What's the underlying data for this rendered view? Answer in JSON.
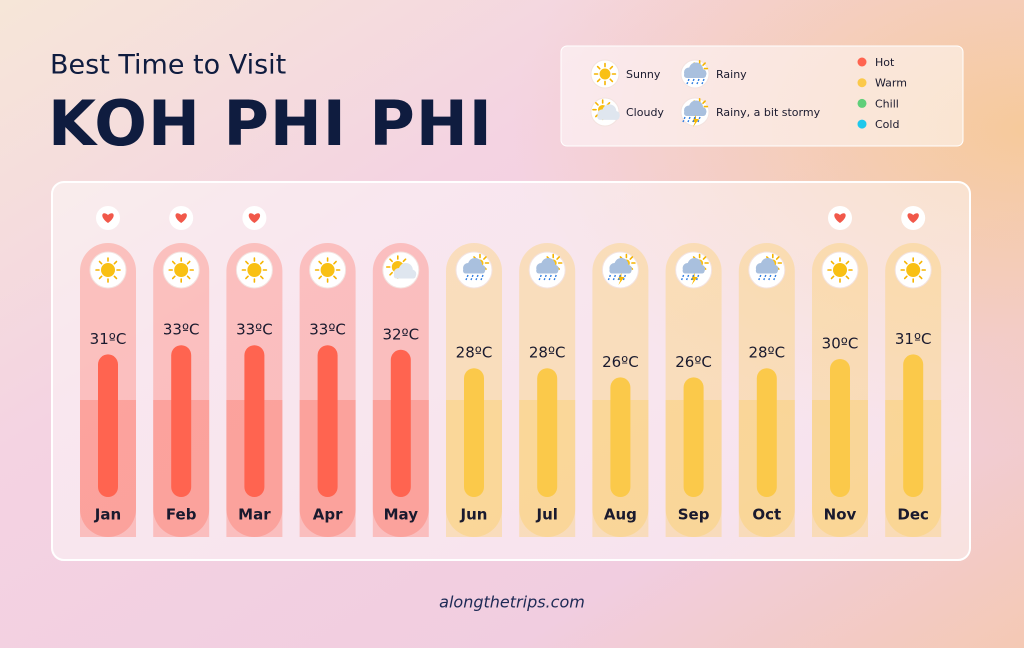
{
  "chart_data": {
    "type": "bar",
    "subtitle": "Best Time to Visit",
    "title": "KOH PHI PHI",
    "categories": [
      "Jan",
      "Feb",
      "Mar",
      "Apr",
      "May",
      "Jun",
      "Jul",
      "Aug",
      "Sep",
      "Oct",
      "Nov",
      "Dec"
    ],
    "values": [
      31,
      33,
      33,
      33,
      32,
      28,
      28,
      26,
      26,
      28,
      30,
      31
    ],
    "value_labels": [
      "31ºC",
      "33ºC",
      "33ºC",
      "33ºC",
      "32ºC",
      "28ºC",
      "28ºC",
      "26ºC",
      "26ºC",
      "28ºC",
      "30ºC",
      "31ºC"
    ],
    "weather": [
      "Sunny",
      "Sunny",
      "Sunny",
      "Sunny",
      "Cloudy",
      "Rainy",
      "Rainy",
      "Rainy, a bit stormy",
      "Rainy, a bit stormy",
      "Rainy",
      "Sunny",
      "Sunny"
    ],
    "temperature": [
      "Hot",
      "Hot",
      "Hot",
      "Hot",
      "Hot",
      "Warm",
      "Warm",
      "Warm",
      "Warm",
      "Warm",
      "Warm",
      "Warm"
    ],
    "best_time": [
      true,
      true,
      true,
      false,
      false,
      false,
      false,
      false,
      false,
      false,
      true,
      true
    ],
    "weather_legend": [
      "Sunny",
      "Cloudy",
      "Rainy",
      "Rainy, a bit stormy"
    ],
    "temperature_legend": [
      {
        "name": "Hot",
        "color": "#ff6450"
      },
      {
        "name": "Warm",
        "color": "#fbc94a"
      },
      {
        "name": "Chill",
        "color": "#5fcf7a"
      },
      {
        "name": "Cold",
        "color": "#1ec8ec"
      }
    ],
    "footer": "alongthetrips.com"
  }
}
